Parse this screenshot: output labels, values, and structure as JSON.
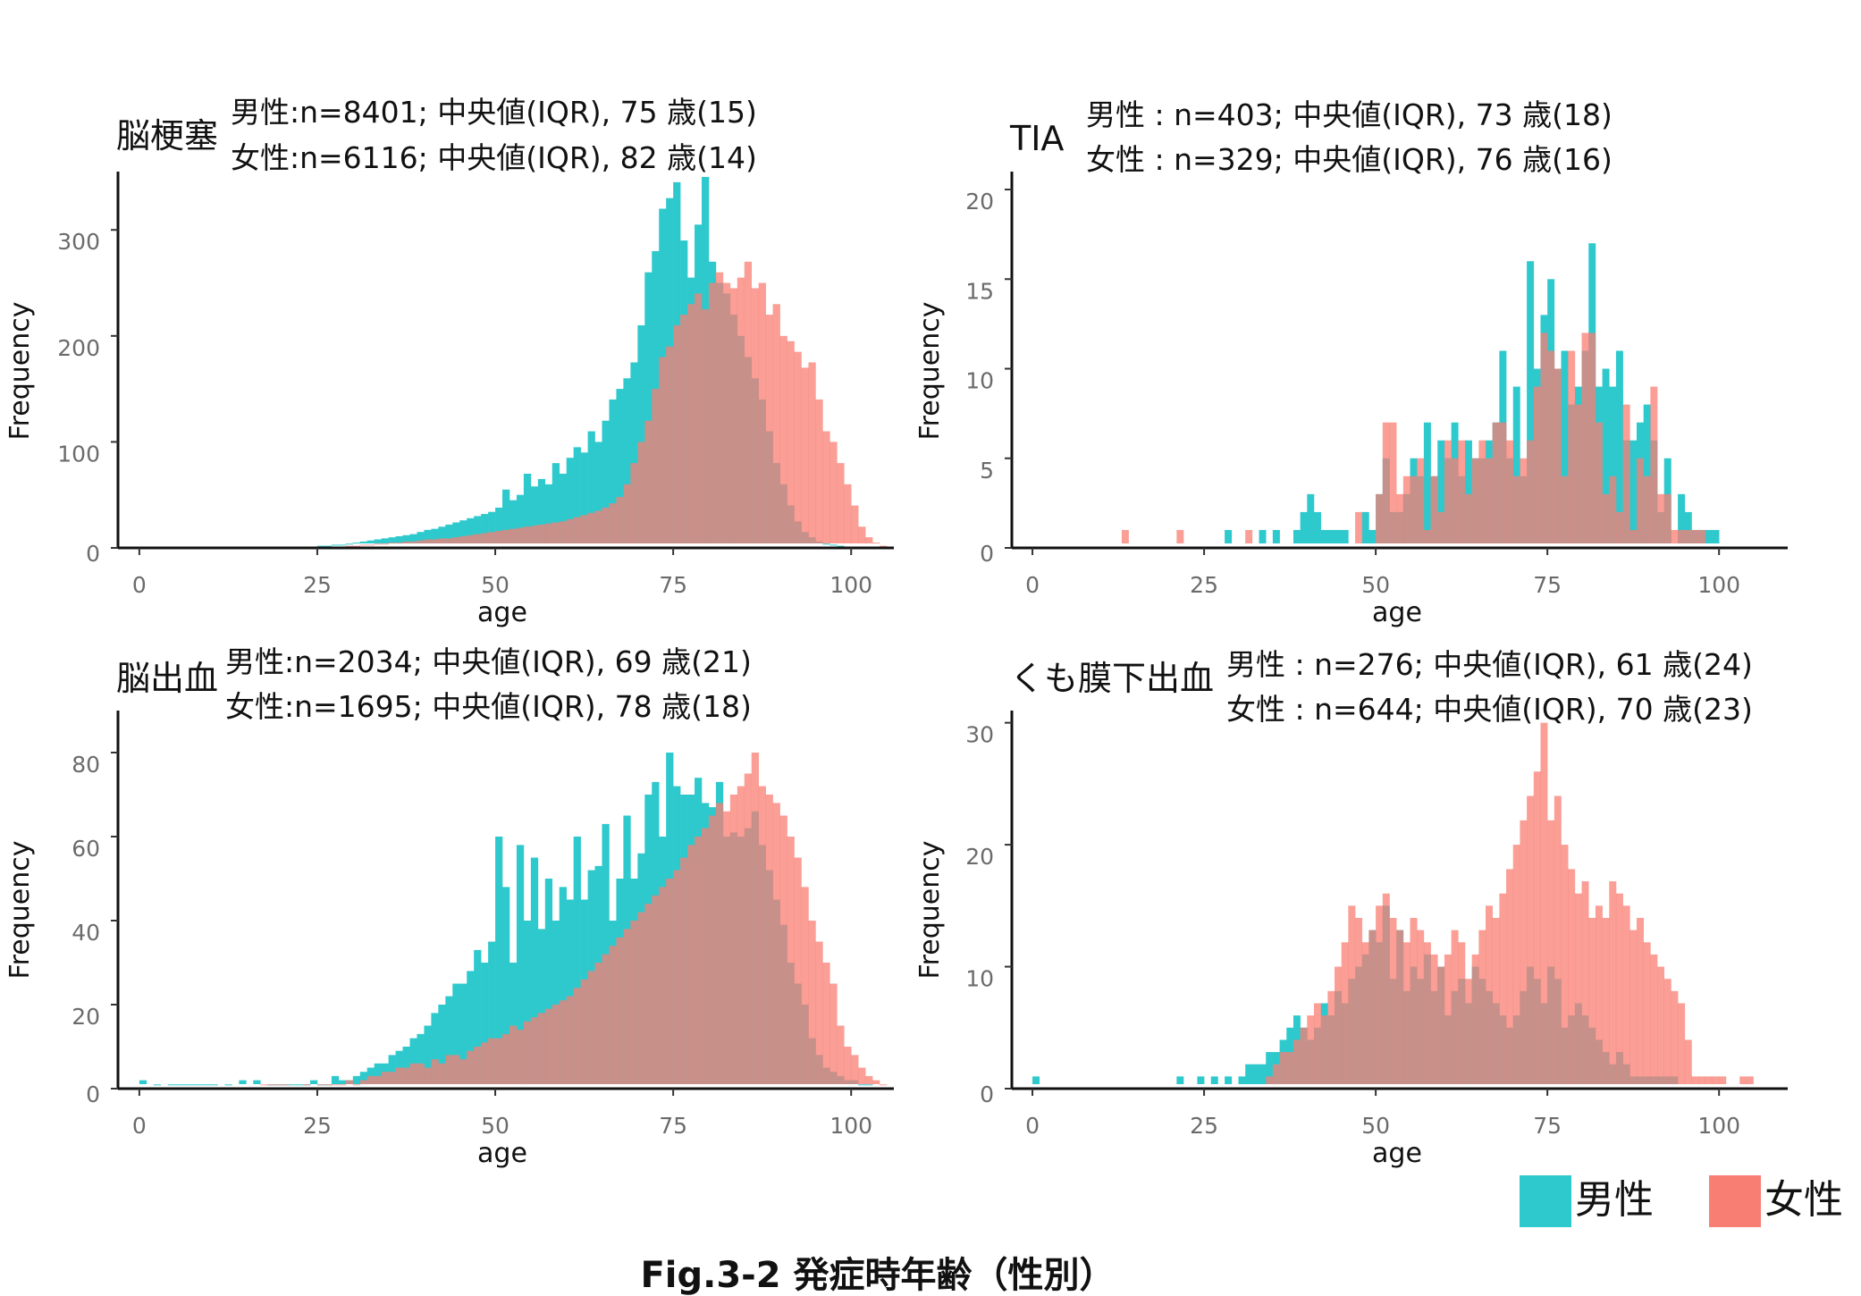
{
  "colors": {
    "male": "#2ec9cd",
    "female": "#f87d73",
    "overlap": "#c88880"
  },
  "legend": [
    {
      "key": "male",
      "label": "男性"
    },
    {
      "key": "female",
      "label": "女性"
    }
  ],
  "caption": "Fig.3-2 発症時年齢（性別）",
  "chart_data": [
    {
      "type": "bar",
      "title": "脳梗塞",
      "stats": [
        "男性:n=8401; 中央値(IQR), 75 歳(15)",
        "女性:n=6116; 中央値(IQR), 82 歳(14)"
      ],
      "xlabel": "age",
      "ylabel": "Frequency",
      "xlim": [
        -3,
        106
      ],
      "ylim": [
        0,
        355
      ],
      "xticks": [
        0,
        25,
        50,
        75,
        100
      ],
      "yticks": [
        0,
        100,
        200,
        300
      ],
      "bin_start": 0,
      "bin_width": 1,
      "series": [
        {
          "name": "男性",
          "values": [
            1,
            0,
            0,
            0,
            0,
            0,
            0,
            0,
            0,
            0,
            0,
            0,
            0,
            1,
            0,
            0,
            0,
            0,
            0,
            0,
            0,
            0,
            0,
            1,
            1,
            2,
            2,
            3,
            3,
            4,
            5,
            6,
            7,
            8,
            9,
            10,
            11,
            12,
            13,
            15,
            17,
            18,
            20,
            22,
            24,
            26,
            28,
            30,
            32,
            34,
            38,
            55,
            45,
            50,
            70,
            58,
            65,
            60,
            80,
            70,
            85,
            95,
            90,
            110,
            100,
            120,
            140,
            150,
            160,
            175,
            210,
            260,
            280,
            320,
            330,
            345,
            290,
            255,
            305,
            350,
            270,
            250,
            240,
            220,
            200,
            180,
            160,
            140,
            110,
            80,
            60,
            40,
            25,
            15,
            10,
            6,
            4,
            3,
            2,
            1,
            1,
            1,
            0,
            0,
            0,
            0
          ]
        },
        {
          "name": "女性",
          "values": [
            0,
            0,
            0,
            0,
            0,
            0,
            0,
            0,
            1,
            1,
            1,
            0,
            0,
            1,
            1,
            0,
            1,
            0,
            0,
            0,
            0,
            0,
            0,
            0,
            0,
            0,
            1,
            1,
            1,
            2,
            2,
            3,
            3,
            4,
            4,
            5,
            5,
            6,
            6,
            7,
            8,
            8,
            9,
            9,
            10,
            11,
            12,
            13,
            14,
            15,
            16,
            17,
            18,
            19,
            20,
            21,
            22,
            23,
            24,
            25,
            27,
            29,
            31,
            33,
            35,
            38,
            42,
            48,
            60,
            80,
            100,
            120,
            150,
            180,
            190,
            210,
            220,
            230,
            240,
            225,
            250,
            260,
            250,
            245,
            255,
            270,
            245,
            250,
            220,
            230,
            200,
            195,
            185,
            170,
            175,
            140,
            110,
            100,
            80,
            60,
            40,
            20,
            10,
            5,
            2,
            0
          ]
        }
      ]
    },
    {
      "type": "bar",
      "title": "TIA",
      "stats": [
        "男性 : n=403;  中央値(IQR), 73 歳(18)",
        "女性 : n=329;  中央値(IQR), 76 歳(16)"
      ],
      "xlabel": "age",
      "ylabel": "Frequency",
      "xlim": [
        -3,
        110
      ],
      "ylim": [
        0,
        21
      ],
      "xticks": [
        0,
        25,
        50,
        75,
        100
      ],
      "yticks": [
        0,
        5,
        10,
        15,
        20
      ],
      "bin_start": 0,
      "bin_width": 1,
      "series": [
        {
          "name": "男性",
          "values": [
            0,
            0,
            0,
            0,
            0,
            0,
            0,
            0,
            0,
            0,
            0,
            0,
            0,
            0,
            0,
            0,
            0,
            0,
            0,
            0,
            0,
            0,
            0,
            0,
            0,
            0,
            0,
            0,
            1,
            0,
            0,
            0,
            0,
            1,
            0,
            1,
            0,
            0,
            1,
            2,
            3,
            2,
            1,
            1,
            1,
            1,
            0,
            0,
            2,
            1,
            3,
            5,
            2,
            2,
            3,
            5,
            4,
            7,
            4,
            6,
            5,
            7,
            4,
            6,
            5,
            5,
            6,
            7,
            11,
            5,
            9,
            4,
            16,
            10,
            13,
            15,
            10,
            11,
            8,
            9,
            11,
            17,
            9,
            10,
            9,
            11,
            6,
            6,
            7,
            8,
            6,
            2,
            5,
            0,
            3,
            2,
            1,
            1,
            1,
            1,
            0,
            0,
            0,
            0,
            0,
            0,
            0,
            0,
            0,
            0
          ]
        },
        {
          "name": "女性",
          "values": [
            0,
            0,
            0,
            0,
            0,
            0,
            0,
            0,
            0,
            0,
            0,
            0,
            0,
            1,
            0,
            0,
            0,
            0,
            0,
            0,
            0,
            1,
            0,
            0,
            0,
            0,
            0,
            0,
            0,
            0,
            0,
            1,
            0,
            0,
            0,
            0,
            0,
            0,
            0,
            0,
            0,
            0,
            0,
            0,
            0,
            0,
            0,
            2,
            0,
            0,
            3,
            7,
            7,
            3,
            4,
            4,
            5,
            1,
            4,
            2,
            6,
            5,
            6,
            3,
            5,
            6,
            5,
            7,
            7,
            6,
            4,
            5,
            6,
            9,
            12,
            11,
            10,
            4,
            11,
            8,
            12,
            12,
            7,
            3,
            4,
            2,
            8,
            1,
            5,
            4,
            9,
            3,
            3,
            1,
            1,
            1,
            1,
            1,
            0,
            0,
            0,
            0,
            0,
            0,
            0,
            0,
            0,
            0,
            0,
            0
          ]
        }
      ]
    },
    {
      "type": "bar",
      "title": "脳出血",
      "stats": [
        "男性:n=2034;  中央値(IQR), 69 歳(21)",
        "女性:n=1695;  中央値(IQR), 78 歳(18)"
      ],
      "xlabel": "age",
      "ylabel": "Frequency",
      "xlim": [
        -3,
        106
      ],
      "ylim": [
        0,
        90
      ],
      "xticks": [
        0,
        25,
        50,
        75,
        100
      ],
      "yticks": [
        0,
        20,
        40,
        60,
        80
      ],
      "bin_start": 0,
      "bin_width": 1,
      "series": [
        {
          "name": "男性",
          "values": [
            2,
            0,
            1,
            0,
            1,
            1,
            1,
            1,
            1,
            1,
            1,
            0,
            1,
            0,
            2,
            0,
            2,
            0,
            1,
            1,
            1,
            1,
            1,
            1,
            2,
            1,
            1,
            3,
            2,
            2,
            3,
            4,
            5,
            6,
            6,
            8,
            9,
            10,
            12,
            13,
            15,
            18,
            20,
            22,
            25,
            25,
            28,
            33,
            30,
            35,
            60,
            48,
            30,
            58,
            40,
            55,
            38,
            50,
            40,
            48,
            45,
            60,
            45,
            52,
            53,
            63,
            40,
            50,
            65,
            50,
            56,
            70,
            73,
            60,
            80,
            72,
            70,
            70,
            74,
            68,
            67,
            73,
            60,
            61,
            60,
            62,
            66,
            58,
            52,
            45,
            39,
            30,
            25,
            20,
            12,
            8,
            5,
            4,
            3,
            2,
            2,
            1,
            1,
            0,
            0,
            0
          ]
        },
        {
          "name": "女性",
          "values": [
            0,
            0,
            0,
            0,
            0,
            0,
            0,
            0,
            0,
            0,
            0,
            0,
            0,
            0,
            0,
            0,
            0,
            1,
            1,
            1,
            1,
            0,
            0,
            1,
            0,
            1,
            1,
            1,
            1,
            2,
            1,
            2,
            3,
            3,
            4,
            4,
            5,
            5,
            6,
            6,
            5,
            7,
            6,
            8,
            8,
            7,
            9,
            10,
            11,
            12,
            12,
            13,
            15,
            14,
            16,
            17,
            18,
            19,
            20,
            21,
            22,
            24,
            26,
            28,
            30,
            32,
            34,
            36,
            38,
            40,
            42,
            44,
            46,
            48,
            50,
            52,
            55,
            58,
            60,
            62,
            65,
            68,
            66,
            70,
            72,
            75,
            80,
            72,
            70,
            68,
            65,
            60,
            55,
            48,
            40,
            35,
            30,
            25,
            15,
            10,
            8,
            5,
            3,
            2,
            1,
            0
          ]
        }
      ]
    },
    {
      "type": "bar",
      "title": "くも膜下出血",
      "stats": [
        "男性 : n=276;  中央値(IQR), 61 歳(24)",
        "女性 : n=644;  中央値(IQR), 70 歳(23)"
      ],
      "xlabel": "age",
      "ylabel": "Frequency",
      "xlim": [
        -3,
        110
      ],
      "ylim": [
        0,
        31
      ],
      "xticks": [
        0,
        25,
        50,
        75,
        100
      ],
      "yticks": [
        0,
        10,
        20,
        30
      ],
      "bin_start": 0,
      "bin_width": 1,
      "series": [
        {
          "name": "男性",
          "values": [
            1,
            0,
            0,
            0,
            0,
            0,
            0,
            0,
            0,
            0,
            0,
            0,
            0,
            0,
            0,
            0,
            0,
            0,
            0,
            0,
            0,
            1,
            0,
            0,
            1,
            0,
            1,
            0,
            1,
            0,
            1,
            2,
            2,
            2,
            3,
            3,
            4,
            5,
            6,
            5,
            4,
            5,
            7,
            6,
            8,
            7,
            9,
            10,
            11,
            13,
            12,
            15,
            9,
            13,
            8,
            10,
            9,
            11,
            8,
            10,
            6,
            8,
            9,
            7,
            10,
            9,
            8,
            7,
            6,
            5,
            6,
            8,
            10,
            9,
            7,
            10,
            9,
            5,
            6,
            7,
            6,
            5,
            4,
            3,
            2,
            3,
            2,
            1,
            1,
            1,
            1,
            1,
            1,
            1,
            0,
            0,
            0,
            0,
            0,
            0,
            0,
            0,
            0,
            0,
            0,
            0,
            0,
            0,
            0,
            0
          ]
        },
        {
          "name": "女性",
          "values": [
            0,
            0,
            0,
            0,
            0,
            0,
            0,
            0,
            0,
            0,
            0,
            0,
            0,
            0,
            0,
            0,
            0,
            0,
            0,
            0,
            0,
            0,
            0,
            0,
            0,
            0,
            0,
            0,
            0,
            0,
            0,
            0,
            0,
            0,
            1,
            2,
            3,
            3,
            4,
            5,
            6,
            7,
            6,
            8,
            10,
            12,
            15,
            14,
            12,
            13,
            15,
            16,
            14,
            13,
            12,
            14,
            13,
            12,
            11,
            10,
            11,
            13,
            12,
            9,
            11,
            13,
            15,
            14,
            16,
            18,
            20,
            22,
            24,
            26,
            30,
            22,
            24,
            20,
            18,
            16,
            17,
            14,
            15,
            14,
            17,
            16,
            15,
            13,
            14,
            12,
            11,
            10,
            9,
            8,
            7,
            4,
            1,
            1,
            1,
            1,
            1,
            0,
            0,
            1,
            1,
            0,
            0,
            0,
            0,
            0
          ]
        }
      ]
    }
  ]
}
